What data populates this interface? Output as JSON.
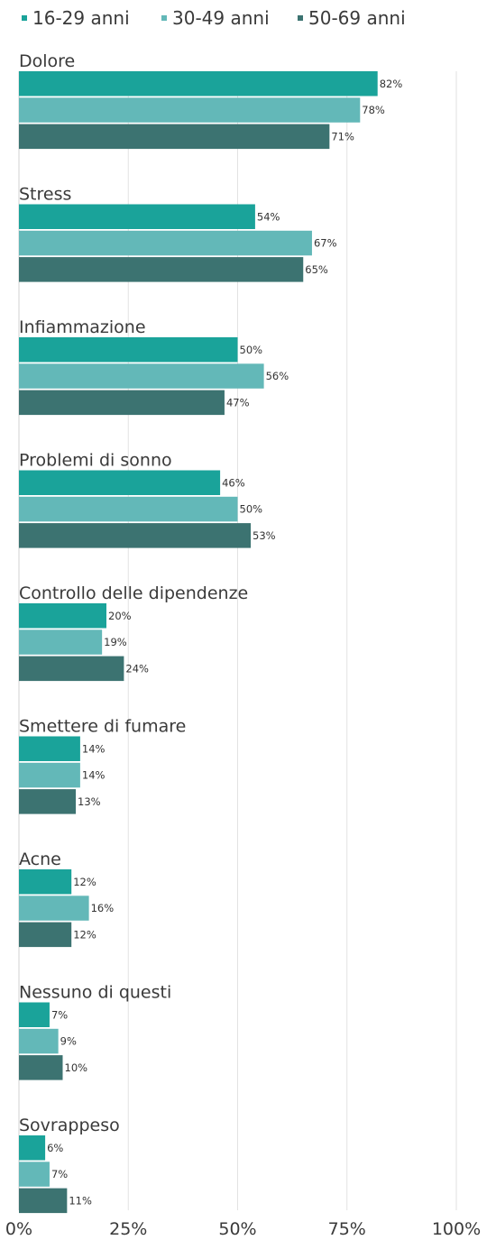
{
  "chart_data": {
    "type": "bar",
    "orientation": "horizontal",
    "categories": [
      "Dolore",
      "Stress",
      "Infiammazione",
      "Problemi di sonno",
      "Controllo delle dipendenze",
      "Smettere di fumare",
      "Acne",
      "Nessuno di questi",
      "Sovrappeso"
    ],
    "series": [
      {
        "name": "16-29 anni",
        "color": "#1aa39a",
        "values": [
          82,
          54,
          50,
          46,
          20,
          14,
          12,
          7,
          6
        ]
      },
      {
        "name": "30-49 anni",
        "color": "#63b8b8",
        "values": [
          78,
          67,
          56,
          50,
          19,
          14,
          16,
          9,
          7
        ]
      },
      {
        "name": "50-69 anni",
        "color": "#3c7371",
        "values": [
          71,
          65,
          47,
          53,
          24,
          13,
          12,
          10,
          11
        ]
      }
    ],
    "value_suffix": "%",
    "xlim": [
      0,
      100
    ],
    "xticks": [
      0,
      25,
      50,
      75,
      100
    ],
    "xtick_labels": [
      "0%",
      "25%",
      "50%",
      "75%",
      "100%"
    ],
    "grid": true,
    "legend_position": "top-left",
    "title": "",
    "xlabel": "",
    "ylabel": ""
  }
}
